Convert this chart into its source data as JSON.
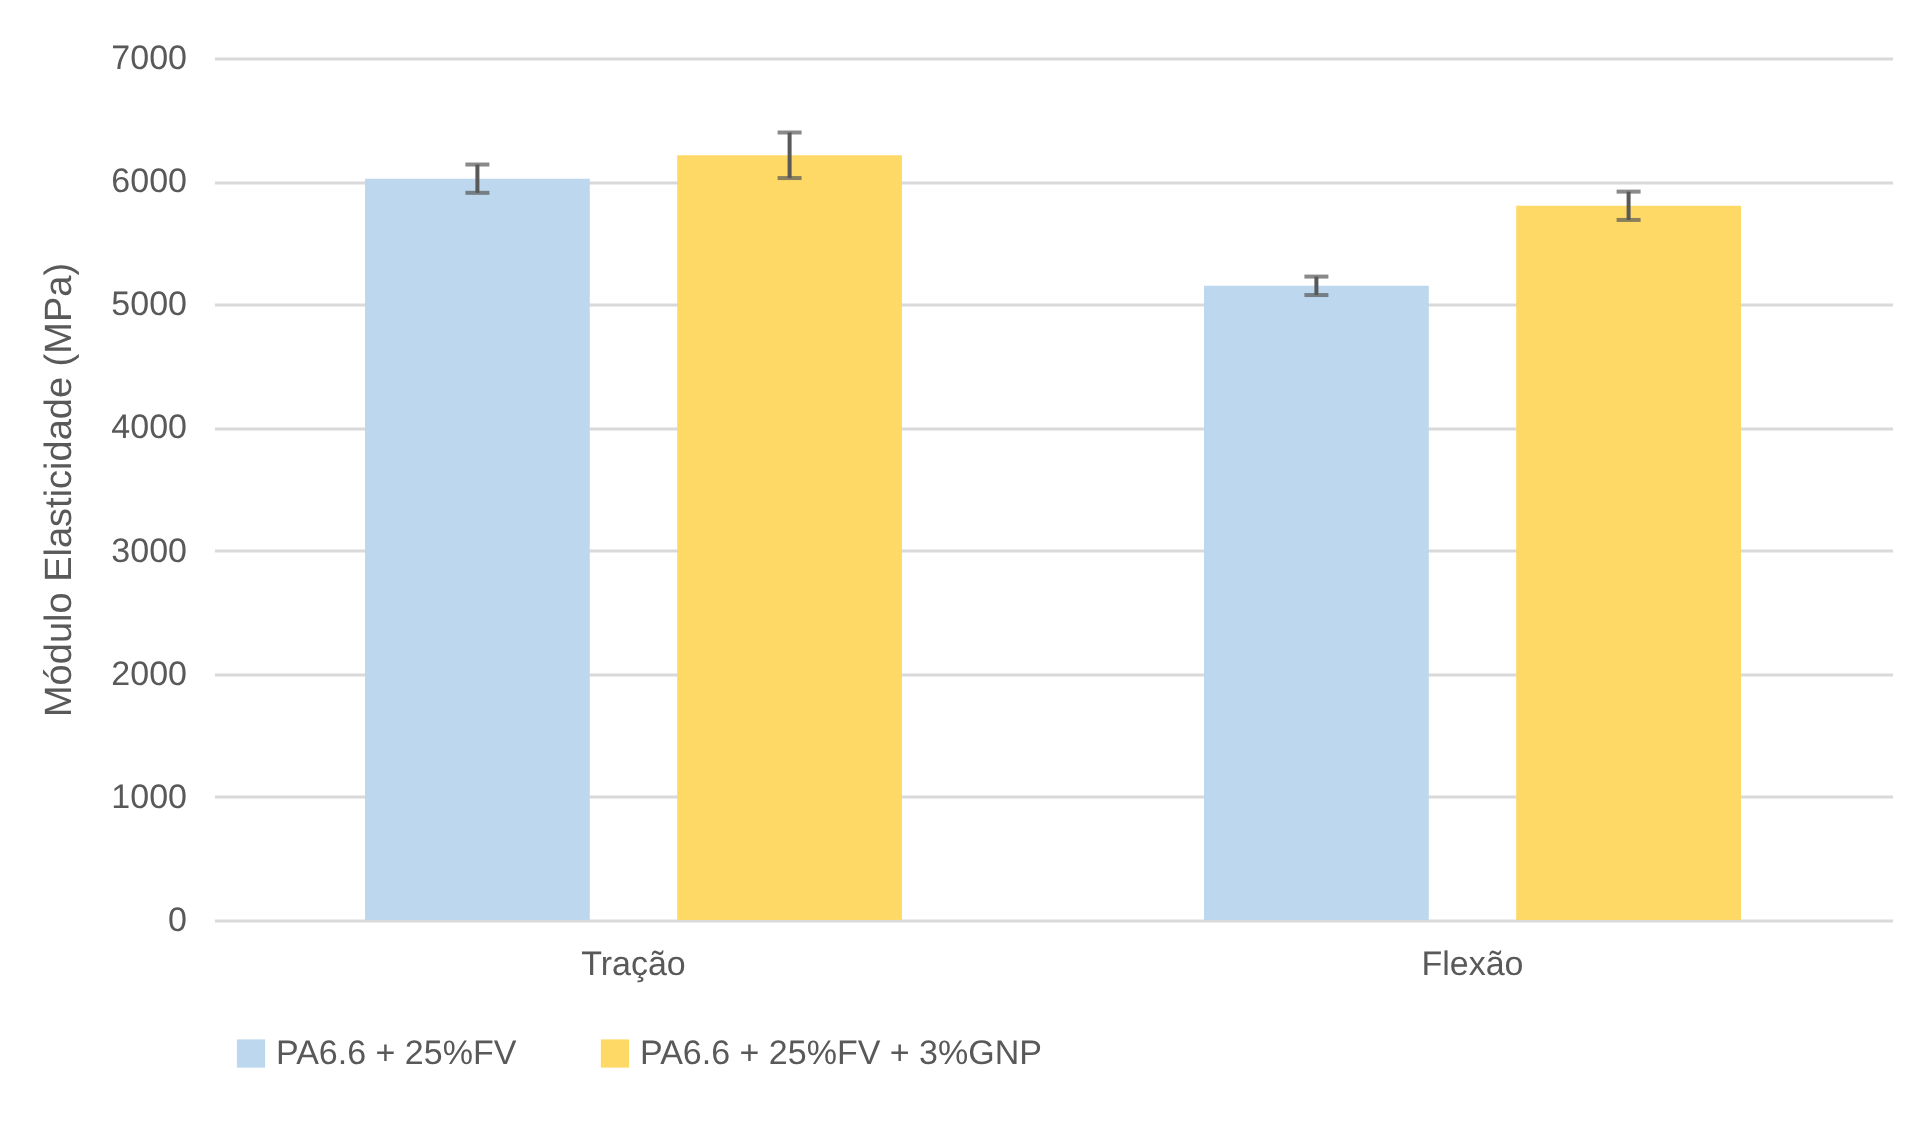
{
  "chart_data": {
    "type": "bar",
    "ylabel": "Módulo Elasticidade (MPa)",
    "categories": [
      "Tração",
      "Flexão"
    ],
    "series": [
      {
        "name": "PA6.6 + 25%FV",
        "color": "#bdd7ee",
        "values": [
          6020,
          5150
        ],
        "errors": [
          115,
          75
        ]
      },
      {
        "name": "PA6.6 + 25%FV + 3%GNP",
        "color": "#ffd966",
        "values": [
          6210,
          5800
        ],
        "errors": [
          185,
          115
        ]
      }
    ],
    "ylim": [
      0,
      7000
    ],
    "yticks": [
      0,
      1000,
      2000,
      3000,
      4000,
      5000,
      6000,
      7000
    ],
    "grid": "y",
    "legend": "bottom"
  }
}
